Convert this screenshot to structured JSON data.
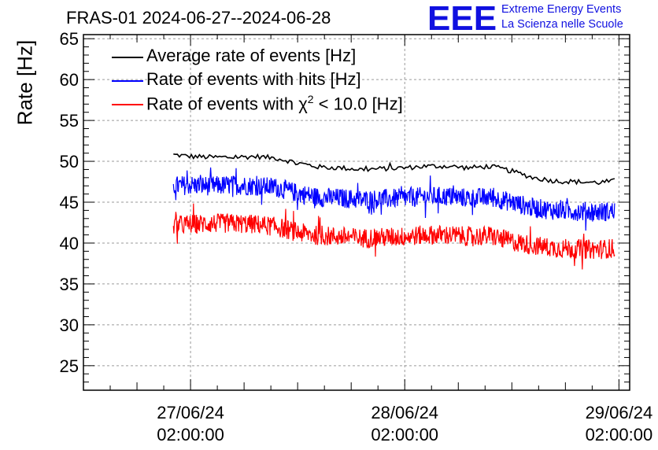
{
  "title": "FRAS-01 2024-06-27--2024-06-28",
  "brand": {
    "logo_text": "EEE",
    "line1": "Extreme Energy Events",
    "line2": "La Scienza nelle Scuole",
    "color": "#1010e0"
  },
  "chart_data": {
    "type": "line",
    "title": "FRAS-01 2024-06-27--2024-06-28",
    "xlabel": "",
    "ylabel": "Rate [Hz]",
    "ylim": [
      22,
      65.5
    ],
    "xlim": [
      -0.5,
      2.05
    ],
    "yticks": [
      25,
      30,
      35,
      40,
      45,
      50,
      55,
      60,
      65
    ],
    "xticks": [
      {
        "value": 0,
        "label": [
          "27/06/24",
          "02:00:00"
        ]
      },
      {
        "value": 1,
        "label": [
          "28/06/24",
          "02:00:00"
        ]
      },
      {
        "value": 2,
        "label": [
          "29/06/24",
          "02:00:00"
        ]
      }
    ],
    "x_unit": "days since 27/06/24 02:00:00",
    "grid": true,
    "legend_position": "top-left",
    "series": [
      {
        "name": "Average rate of events [Hz]",
        "legend_label": "Average rate of events [Hz]",
        "color": "#000000",
        "noise": 0.3,
        "x": [
          -0.08,
          0.0,
          0.1,
          0.2,
          0.3,
          0.4,
          0.5,
          0.6,
          0.7,
          0.8,
          0.9,
          1.0,
          1.1,
          1.2,
          1.3,
          1.4,
          1.5,
          1.6,
          1.7,
          1.8,
          1.9,
          1.98
        ],
        "y": [
          50.8,
          50.6,
          50.5,
          50.5,
          50.6,
          50.4,
          49.8,
          49.3,
          49.2,
          49.0,
          49.1,
          49.2,
          49.4,
          49.4,
          49.2,
          49.4,
          48.8,
          48.0,
          47.6,
          47.5,
          47.4,
          47.6
        ]
      },
      {
        "name": "Rate of events with hits [Hz]",
        "legend_label": "Rate of events with hits [Hz]",
        "color": "#0000ff",
        "noise": 1.2,
        "x": [
          -0.08,
          0.0,
          0.1,
          0.2,
          0.3,
          0.4,
          0.5,
          0.6,
          0.7,
          0.8,
          0.9,
          1.0,
          1.1,
          1.2,
          1.3,
          1.4,
          1.5,
          1.6,
          1.7,
          1.8,
          1.9,
          1.98
        ],
        "y": [
          47.0,
          47.1,
          47.0,
          47.1,
          47.0,
          46.8,
          46.1,
          45.6,
          45.5,
          45.3,
          45.4,
          45.5,
          45.7,
          45.7,
          45.5,
          45.6,
          45.0,
          44.3,
          44.0,
          43.9,
          43.8,
          43.9
        ]
      },
      {
        "name": "Rate of events with chi2 < 10.0 [Hz]",
        "legend_label": "Rate of events with χ",
        "legend_sup": "2",
        "legend_suffix": " < 10.0 [Hz]",
        "color": "#ff0000",
        "noise": 1.2,
        "x": [
          -0.08,
          0.0,
          0.1,
          0.2,
          0.3,
          0.4,
          0.5,
          0.6,
          0.7,
          0.8,
          0.9,
          1.0,
          1.1,
          1.2,
          1.3,
          1.4,
          1.5,
          1.6,
          1.7,
          1.8,
          1.9,
          1.98
        ],
        "y": [
          42.2,
          42.3,
          42.4,
          42.4,
          42.3,
          42.0,
          41.3,
          40.9,
          40.8,
          40.6,
          40.7,
          40.8,
          41.0,
          41.0,
          40.8,
          40.9,
          40.2,
          39.7,
          39.4,
          39.3,
          39.2,
          39.4
        ]
      }
    ]
  }
}
